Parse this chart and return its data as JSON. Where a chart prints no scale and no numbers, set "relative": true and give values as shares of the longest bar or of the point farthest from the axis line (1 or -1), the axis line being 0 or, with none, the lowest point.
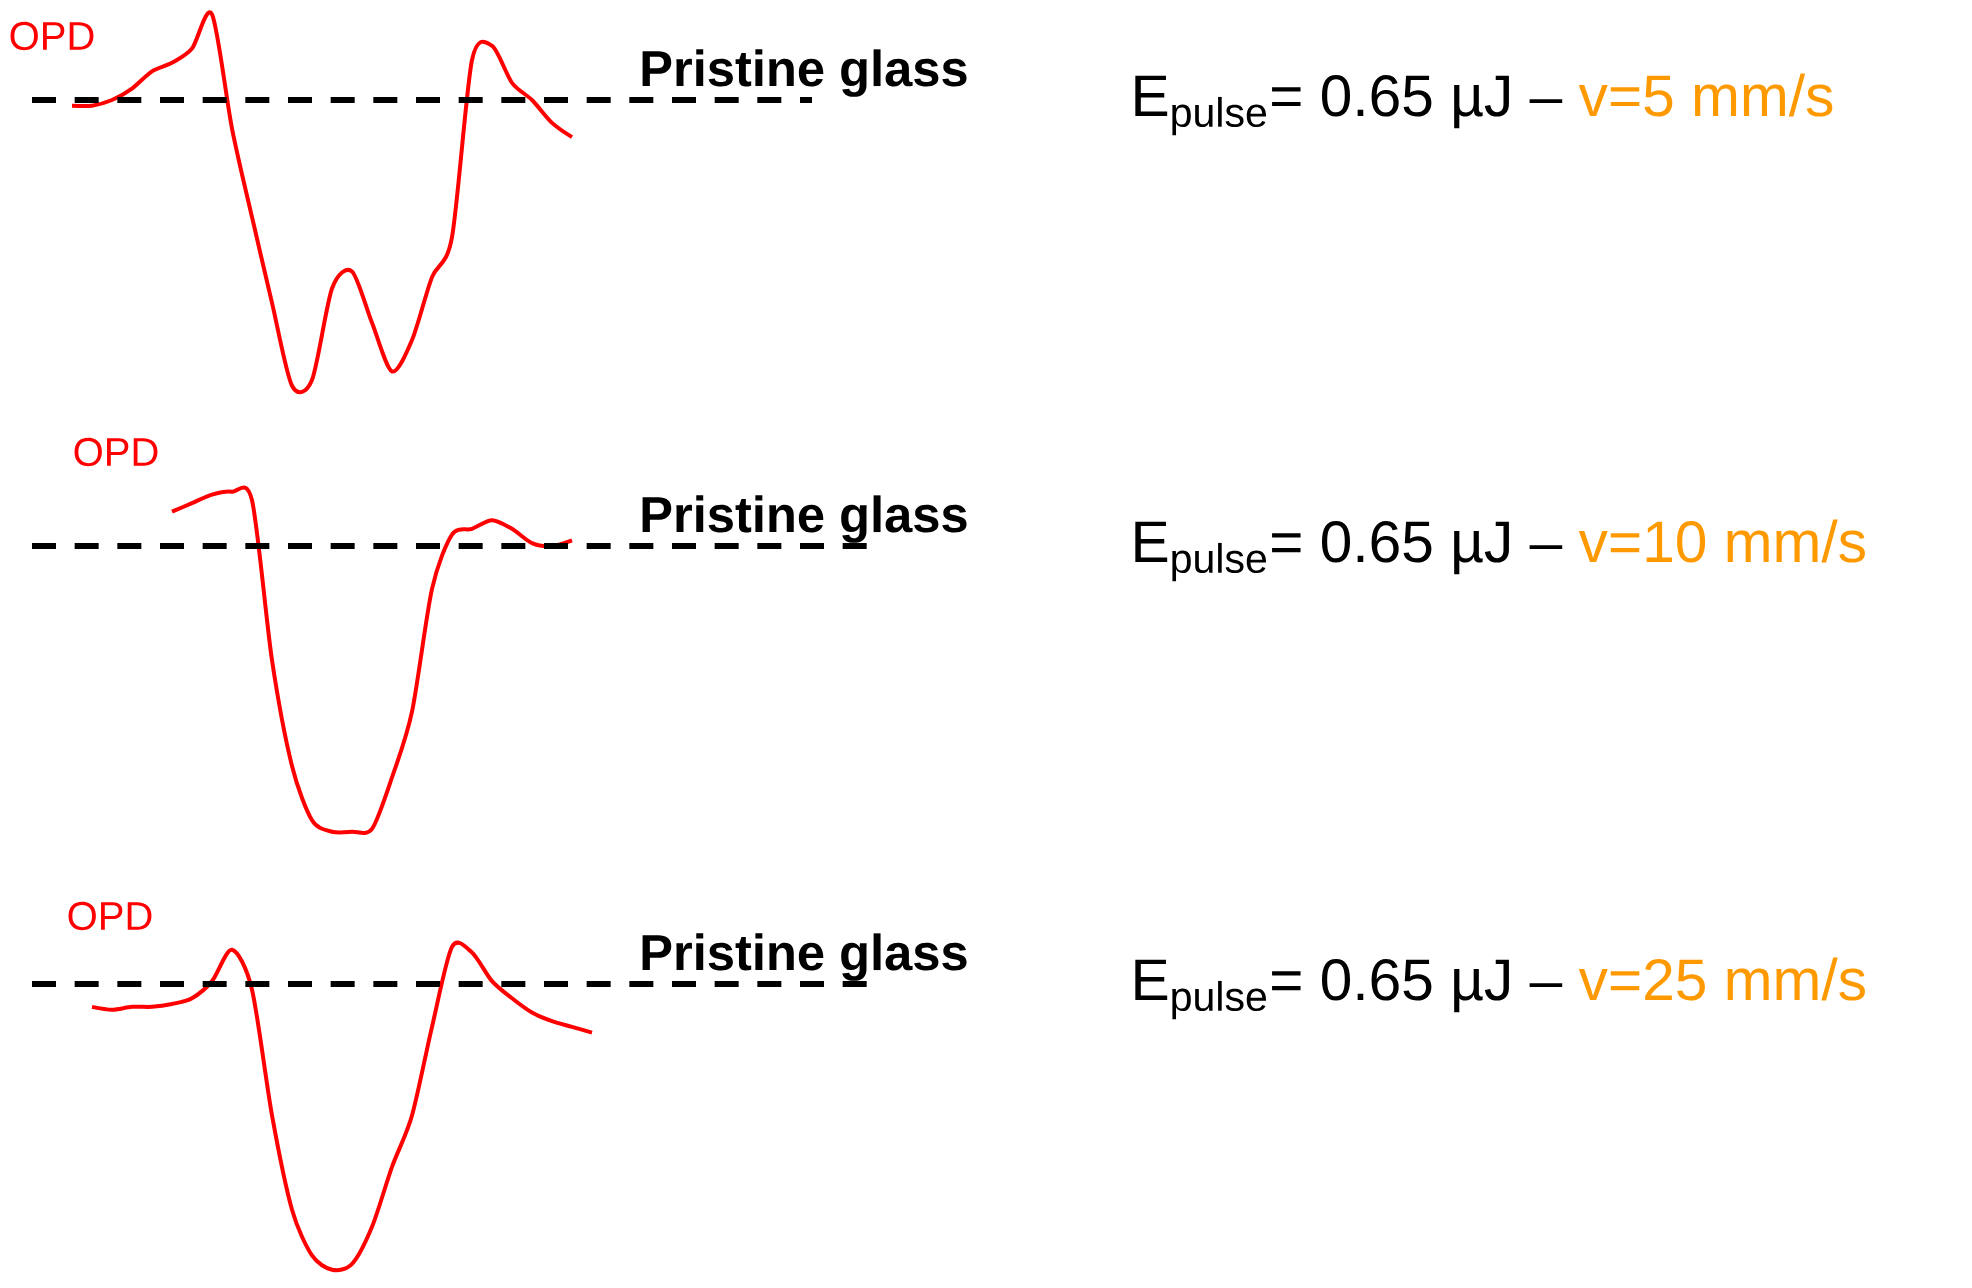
{
  "chart_data": [
    {
      "type": "line",
      "annotations": [
        "E$_{pulse}$= 0.65 µJ –",
        "v=5 mm/s"
      ],
      "ylabel": "OPD",
      "relative": true,
      "tick_labels": false,
      "categories": [
        null,
        null,
        null,
        null,
        null,
        null,
        null,
        null,
        null,
        null,
        null,
        null,
        null,
        null,
        null,
        null,
        null,
        null,
        null,
        null,
        null,
        null,
        null,
        null,
        null,
        null,
        null,
        null,
        null,
        null,
        null,
        null,
        null,
        null,
        null,
        null,
        null,
        null,
        null,
        null
      ],
      "series": [
        {
          "color": "#ff0000",
          "values": [
            null,
            null,
            -0.02,
            -0.02,
            0,
            0.04,
            0.1,
            0.13,
            0.18,
            0.3,
            -0.1,
            -0.41,
            -0.71,
            -1,
            -0.98,
            -0.66,
            -0.6,
            -0.78,
            -0.95,
            -0.84,
            -0.62,
            -0.48,
            0.14,
            0.19,
            0.06,
            0,
            -0.08,
            -0.13,
            null,
            null,
            null,
            null,
            null,
            null,
            null,
            null,
            null,
            null,
            null,
            null
          ]
        }
      ],
      "ref_lines": [
        {
          "axis": "y",
          "value": 0,
          "label": "Pristine glass",
          "color": "#000000",
          "line_style": "dashed"
        }
      ]
    },
    {
      "type": "line",
      "annotations": [
        "E$_{pulse}$= 0.65 µJ –",
        "v=10 mm/s"
      ],
      "ylabel": "OPD",
      "relative": true,
      "tick_labels": false,
      "categories": [
        null,
        null,
        null,
        null,
        null,
        null,
        null,
        null,
        null,
        null,
        null,
        null,
        null,
        null,
        null,
        null,
        null,
        null,
        null,
        null,
        null,
        null,
        null,
        null,
        null,
        null,
        null,
        null,
        null,
        null,
        null,
        null,
        null,
        null,
        null,
        null,
        null,
        null,
        null,
        null,
        null,
        null,
        null
      ],
      "series": [
        {
          "color": "#ff0000",
          "values": [
            null,
            null,
            null,
            null,
            null,
            null,
            null,
            0.12,
            0.15,
            0.18,
            0.19,
            0.16,
            -0.4,
            -0.77,
            -0.96,
            -1,
            -1,
            -0.99,
            -0.81,
            -0.58,
            -0.15,
            0.04,
            0.06,
            0.09,
            0.06,
            0.01,
            0,
            0.02,
            null,
            null,
            null,
            null,
            null,
            null,
            null,
            null,
            null,
            null,
            null,
            null,
            null,
            null,
            null
          ]
        }
      ],
      "ref_lines": [
        {
          "axis": "y",
          "value": 0,
          "label": "Pristine glass",
          "color": "#000000",
          "line_style": "dashed"
        }
      ]
    },
    {
      "type": "line",
      "annotations": [
        "E$_{pulse}$= 0.65 µJ –",
        "v=25 mm/s"
      ],
      "ylabel": "OPD",
      "relative": true,
      "tick_labels": false,
      "categories": [
        null,
        null,
        null,
        null,
        null,
        null,
        null,
        null,
        null,
        null,
        null,
        null,
        null,
        null,
        null,
        null,
        null,
        null,
        null,
        null,
        null,
        null,
        null,
        null,
        null,
        null,
        null,
        null,
        null,
        null,
        null,
        null,
        null,
        null,
        null,
        null,
        null,
        null,
        null,
        null,
        null,
        null,
        null
      ],
      "series": [
        {
          "color": "#ff0000",
          "values": [
            null,
            null,
            null,
            -0.08,
            -0.09,
            -0.08,
            -0.08,
            -0.07,
            -0.05,
            0.01,
            0.12,
            -0.02,
            -0.46,
            -0.79,
            -0.95,
            -1,
            -0.98,
            -0.85,
            -0.64,
            -0.46,
            -0.15,
            0.13,
            0.11,
            0.01,
            -0.05,
            -0.1,
            -0.13,
            -0.15,
            -0.17,
            null,
            null,
            null,
            null,
            null,
            null,
            null,
            null,
            null,
            null,
            null,
            null,
            null,
            null
          ]
        }
      ],
      "ref_lines": [
        {
          "axis": "y",
          "value": 0,
          "label": "Pristine glass",
          "color": "#000000",
          "line_style": "dashed"
        }
      ]
    }
  ]
}
